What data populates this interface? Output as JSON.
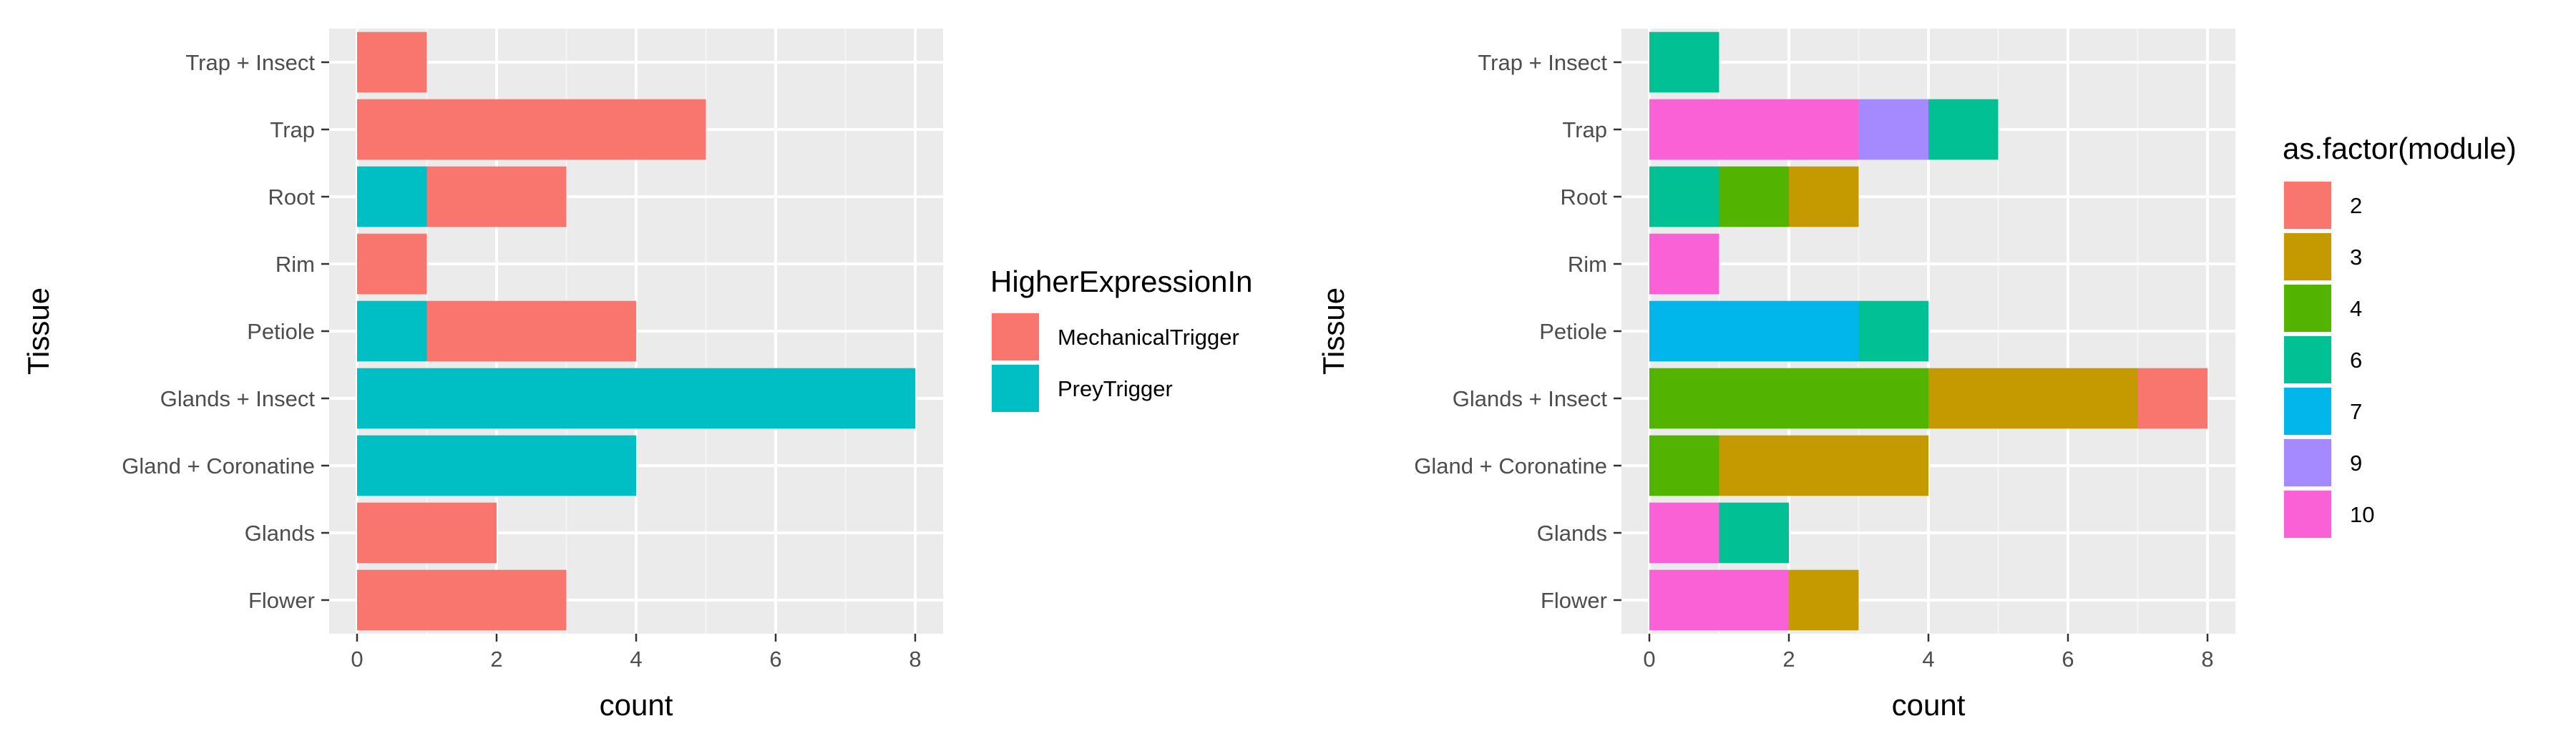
{
  "chart_data": [
    {
      "type": "bar",
      "orientation": "horizontal",
      "stacked": true,
      "xlabel": "count",
      "ylabel": "Tissue",
      "categories": [
        "Flower",
        "Glands",
        "Gland + Coronatine",
        "Glands + Insect",
        "Petiole",
        "Rim",
        "Root",
        "Trap",
        "Trap + Insect"
      ],
      "xlim": [
        -0.4,
        8.4
      ],
      "xticks": [
        0,
        2,
        4,
        6,
        8
      ],
      "grid": true,
      "legend": {
        "title": "HigherExpressionIn",
        "position": "right"
      },
      "series": [
        {
          "name": "MechanicalTrigger",
          "color": "#F8766D",
          "values": [
            3,
            2,
            0,
            0,
            3,
            1,
            2,
            5,
            1
          ]
        },
        {
          "name": "PreyTrigger",
          "color": "#00BFC4",
          "values": [
            0,
            0,
            4,
            8,
            1,
            0,
            1,
            0,
            0
          ]
        }
      ]
    },
    {
      "type": "bar",
      "orientation": "horizontal",
      "stacked": true,
      "xlabel": "count",
      "ylabel": "Tissue",
      "categories": [
        "Flower",
        "Glands",
        "Gland + Coronatine",
        "Glands + Insect",
        "Petiole",
        "Rim",
        "Root",
        "Trap",
        "Trap + Insect"
      ],
      "xlim": [
        -0.4,
        8.4
      ],
      "xticks": [
        0,
        2,
        4,
        6,
        8
      ],
      "grid": true,
      "legend": {
        "title": "as.factor(module)",
        "position": "right"
      },
      "series": [
        {
          "name": "2",
          "color": "#F8766D",
          "values": [
            0,
            0,
            0,
            1,
            0,
            0,
            0,
            0,
            0
          ]
        },
        {
          "name": "3",
          "color": "#C49A00",
          "values": [
            1,
            0,
            3,
            3,
            0,
            0,
            1,
            0,
            0
          ]
        },
        {
          "name": "4",
          "color": "#53B400",
          "values": [
            0,
            0,
            1,
            4,
            0,
            0,
            1,
            0,
            0
          ]
        },
        {
          "name": "6",
          "color": "#00C094",
          "values": [
            0,
            1,
            0,
            0,
            1,
            0,
            1,
            1,
            1
          ]
        },
        {
          "name": "7",
          "color": "#00B6EB",
          "values": [
            0,
            0,
            0,
            0,
            3,
            0,
            0,
            0,
            0
          ]
        },
        {
          "name": "9",
          "color": "#A58AFF",
          "values": [
            0,
            0,
            0,
            0,
            0,
            0,
            0,
            1,
            0
          ]
        },
        {
          "name": "10",
          "color": "#FB61D7",
          "values": [
            2,
            1,
            0,
            0,
            0,
            1,
            0,
            3,
            0
          ]
        }
      ]
    }
  ],
  "style": {
    "panel_bg": "#EBEBEB",
    "grid_major": "#FFFFFF",
    "grid_minor": "#F5F5F5"
  }
}
